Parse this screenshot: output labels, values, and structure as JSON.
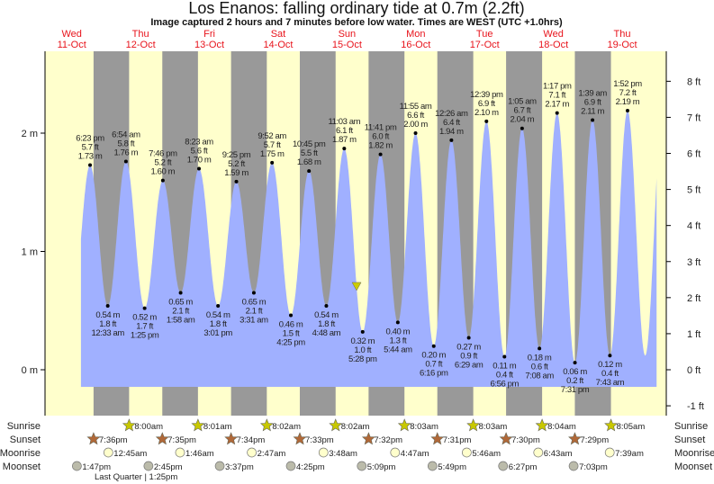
{
  "title": "Los Enanos: falling  ordinary tide at 0.7m (2.2ft)",
  "subtitle": "Image captured 2 hours and 7 minutes before low water. Times are WEST (UTC +1.0hrs)",
  "colors": {
    "day": "#ffffcc",
    "night": "#999999",
    "water": "#a0b0ff",
    "marker": "#cccc00",
    "dayLabel": "#e8141c"
  },
  "chart_data": {
    "type": "area",
    "title": "Los Enanos: falling  ordinary tide at 0.7m (2.2ft)",
    "ylabel_left": "m",
    "ylabel_right": "ft",
    "left_ticks": [
      "0 m",
      "1 m",
      "2 m"
    ],
    "right_ticks": [
      "-1 ft",
      "0 ft",
      "1 ft",
      "2 ft",
      "3 ft",
      "4 ft",
      "5 ft",
      "6 ft",
      "7 ft",
      "8 ft"
    ],
    "days": [
      {
        "dow": "Wed",
        "date": "11-Oct"
      },
      {
        "dow": "Thu",
        "date": "12-Oct"
      },
      {
        "dow": "Fri",
        "date": "13-Oct"
      },
      {
        "dow": "Sat",
        "date": "14-Oct"
      },
      {
        "dow": "Sun",
        "date": "15-Oct"
      },
      {
        "dow": "Mon",
        "date": "16-Oct"
      },
      {
        "dow": "Tue",
        "date": "17-Oct"
      },
      {
        "dow": "Wed",
        "date": "18-Oct"
      },
      {
        "dow": "Thu",
        "date": "19-Oct"
      }
    ],
    "current": {
      "day": 4,
      "time": "15:21",
      "height_m": 0.7,
      "height_ft": 2.2
    },
    "extremes": [
      {
        "type": "high",
        "day": 0,
        "hm": "18:23",
        "time": "6:23 pm",
        "ft": "5.7 ft",
        "m": 1.73
      },
      {
        "type": "low",
        "day": 1,
        "hm": "00:33",
        "time": "12:33 am",
        "ft": "1.8 ft",
        "m": 0.54
      },
      {
        "type": "high",
        "day": 1,
        "hm": "06:54",
        "time": "6:54 am",
        "ft": "5.8 ft",
        "m": 1.76
      },
      {
        "type": "low",
        "day": 1,
        "hm": "13:25",
        "time": "1:25 pm",
        "ft": "1.7 ft",
        "m": 0.52
      },
      {
        "type": "high",
        "day": 1,
        "hm": "19:46",
        "time": "7:46 pm",
        "ft": "5.2 ft",
        "m": 1.6
      },
      {
        "type": "low",
        "day": 2,
        "hm": "01:58",
        "time": "1:58 am",
        "ft": "2.1 ft",
        "m": 0.65
      },
      {
        "type": "high",
        "day": 2,
        "hm": "08:23",
        "time": "8:23 am",
        "ft": "5.6 ft",
        "m": 1.7
      },
      {
        "type": "low",
        "day": 2,
        "hm": "15:01",
        "time": "3:01 pm",
        "ft": "1.8 ft",
        "m": 0.54
      },
      {
        "type": "high",
        "day": 2,
        "hm": "21:25",
        "time": "9:25 pm",
        "ft": "5.2 ft",
        "m": 1.59
      },
      {
        "type": "low",
        "day": 3,
        "hm": "03:31",
        "time": "3:31 am",
        "ft": "2.1 ft",
        "m": 0.65
      },
      {
        "type": "high",
        "day": 3,
        "hm": "09:52",
        "time": "9:52 am",
        "ft": "5.7 ft",
        "m": 1.75
      },
      {
        "type": "low",
        "day": 3,
        "hm": "16:25",
        "time": "4:25 pm",
        "ft": "1.5 ft",
        "m": 0.46
      },
      {
        "type": "high",
        "day": 3,
        "hm": "22:45",
        "time": "10:45 pm",
        "ft": "5.5 ft",
        "m": 1.68
      },
      {
        "type": "low",
        "day": 4,
        "hm": "04:48",
        "time": "4:48 am",
        "ft": "1.8 ft",
        "m": 0.54
      },
      {
        "type": "high",
        "day": 4,
        "hm": "11:03",
        "time": "11:03 am",
        "ft": "6.1 ft",
        "m": 1.87
      },
      {
        "type": "low",
        "day": 4,
        "hm": "17:28",
        "time": "5:28 pm",
        "ft": "1.0 ft",
        "m": 0.32
      },
      {
        "type": "high",
        "day": 4,
        "hm": "23:41",
        "time": "11:41 pm",
        "ft": "6.0 ft",
        "m": 1.82
      },
      {
        "type": "low",
        "day": 5,
        "hm": "05:44",
        "time": "5:44 am",
        "ft": "1.3 ft",
        "m": 0.4
      },
      {
        "type": "high",
        "day": 5,
        "hm": "11:55",
        "time": "11:55 am",
        "ft": "6.6 ft",
        "m": 2.0
      },
      {
        "type": "low",
        "day": 5,
        "hm": "18:16",
        "time": "6:16 pm",
        "ft": "0.7 ft",
        "m": 0.2
      },
      {
        "type": "high",
        "day": 6,
        "hm": "00:26",
        "time": "12:26 am",
        "ft": "6.4 ft",
        "m": 1.94
      },
      {
        "type": "low",
        "day": 6,
        "hm": "06:29",
        "time": "6:29 am",
        "ft": "0.9 ft",
        "m": 0.27
      },
      {
        "type": "high",
        "day": 6,
        "hm": "12:39",
        "time": "12:39 pm",
        "ft": "6.9 ft",
        "m": 2.1
      },
      {
        "type": "low",
        "day": 6,
        "hm": "18:56",
        "time": "6:56 pm",
        "ft": "0.4 ft",
        "m": 0.11
      },
      {
        "type": "high",
        "day": 7,
        "hm": "01:05",
        "time": "1:05 am",
        "ft": "6.7 ft",
        "m": 2.04
      },
      {
        "type": "low",
        "day": 7,
        "hm": "07:08",
        "time": "7:08 am",
        "ft": "0.6 ft",
        "m": 0.18
      },
      {
        "type": "high",
        "day": 7,
        "hm": "13:17",
        "time": "1:17 pm",
        "ft": "7.1 ft",
        "m": 2.17
      },
      {
        "type": "low",
        "day": 7,
        "hm": "19:31",
        "time": "7:31 pm",
        "ft": "0.2 ft",
        "m": 0.06
      },
      {
        "type": "high",
        "day": 8,
        "hm": "01:39",
        "time": "1:39 am",
        "ft": "6.9 ft",
        "m": 2.11
      },
      {
        "type": "low",
        "day": 8,
        "hm": "07:43",
        "time": "7:43 am",
        "ft": "0.4 ft",
        "m": 0.12
      },
      {
        "type": "high",
        "day": 8,
        "hm": "13:52",
        "time": "1:52 pm",
        "ft": "7.2 ft",
        "m": 2.19
      }
    ]
  },
  "rows": {
    "sunrise": {
      "label": "Sunrise",
      "items": [
        {
          "day": 1,
          "hm": "08:00",
          "text": "8:00am"
        },
        {
          "day": 2,
          "hm": "08:01",
          "text": "8:01am"
        },
        {
          "day": 3,
          "hm": "08:02",
          "text": "8:02am"
        },
        {
          "day": 4,
          "hm": "08:02",
          "text": "8:02am"
        },
        {
          "day": 5,
          "hm": "08:03",
          "text": "8:03am"
        },
        {
          "day": 6,
          "hm": "08:03",
          "text": "8:03am"
        },
        {
          "day": 7,
          "hm": "08:04",
          "text": "8:04am"
        },
        {
          "day": 8,
          "hm": "08:05",
          "text": "8:05am"
        }
      ]
    },
    "sunset": {
      "label": "Sunset",
      "items": [
        {
          "day": 0,
          "hm": "19:36",
          "text": "7:36pm"
        },
        {
          "day": 1,
          "hm": "19:35",
          "text": "7:35pm"
        },
        {
          "day": 2,
          "hm": "19:34",
          "text": "7:34pm"
        },
        {
          "day": 3,
          "hm": "19:33",
          "text": "7:33pm"
        },
        {
          "day": 4,
          "hm": "19:32",
          "text": "7:32pm"
        },
        {
          "day": 5,
          "hm": "19:31",
          "text": "7:31pm"
        },
        {
          "day": 6,
          "hm": "19:30",
          "text": "7:30pm"
        },
        {
          "day": 7,
          "hm": "19:29",
          "text": "7:29pm"
        }
      ]
    },
    "moonrise": {
      "label": "Moonrise",
      "items": [
        {
          "day": 1,
          "hm": "00:45",
          "text": "12:45am"
        },
        {
          "day": 2,
          "hm": "01:46",
          "text": "1:46am"
        },
        {
          "day": 3,
          "hm": "02:47",
          "text": "2:47am"
        },
        {
          "day": 4,
          "hm": "03:48",
          "text": "3:48am"
        },
        {
          "day": 5,
          "hm": "04:47",
          "text": "4:47am"
        },
        {
          "day": 6,
          "hm": "05:46",
          "text": "5:46am"
        },
        {
          "day": 7,
          "hm": "06:43",
          "text": "6:43am"
        },
        {
          "day": 8,
          "hm": "07:39",
          "text": "7:39am"
        }
      ]
    },
    "moonset": {
      "label": "Moonset",
      "items": [
        {
          "day": 0,
          "hm": "13:47",
          "text": "1:47pm"
        },
        {
          "day": 1,
          "hm": "14:45",
          "text": "2:45pm"
        },
        {
          "day": 2,
          "hm": "15:37",
          "text": "3:37pm"
        },
        {
          "day": 3,
          "hm": "16:25",
          "text": "4:25pm"
        },
        {
          "day": 4,
          "hm": "17:09",
          "text": "5:09pm"
        },
        {
          "day": 5,
          "hm": "17:49",
          "text": "5:49pm"
        },
        {
          "day": 6,
          "hm": "18:27",
          "text": "6:27pm"
        },
        {
          "day": 7,
          "hm": "19:03",
          "text": "7:03pm"
        }
      ]
    }
  },
  "moon_phase": "Last Quarter | 1:25pm"
}
